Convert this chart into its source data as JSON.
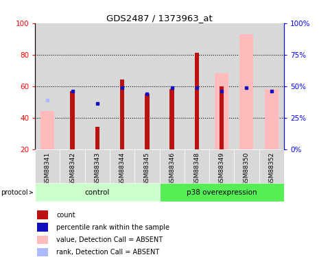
{
  "title": "GDS2487 / 1373963_at",
  "samples": [
    "GSM88341",
    "GSM88342",
    "GSM88343",
    "GSM88344",
    "GSM88345",
    "GSM88346",
    "GSM88348",
    "GSM88349",
    "GSM88350",
    "GSM88352"
  ],
  "red_bars": [
    null,
    57,
    34,
    64,
    55,
    58,
    81,
    60,
    null,
    null
  ],
  "pink_bars": [
    44,
    null,
    null,
    null,
    null,
    null,
    null,
    68,
    93,
    58
  ],
  "blue_squares": [
    null,
    57,
    49,
    59,
    55,
    59,
    59,
    57,
    59,
    57
  ],
  "light_blue_squares": [
    51,
    null,
    null,
    null,
    null,
    null,
    null,
    null,
    null,
    null
  ],
  "ylim_left": [
    20,
    100
  ],
  "ylim_right": [
    0,
    100
  ],
  "yticks_left": [
    20,
    40,
    60,
    80,
    100
  ],
  "ytick_labels_right": [
    "0%",
    "25%",
    "50%",
    "75%",
    "100%"
  ],
  "yticks_right": [
    0,
    25,
    50,
    75,
    100
  ],
  "red_color": "#bb1111",
  "pink_color": "#ffbbbb",
  "blue_color": "#1111bb",
  "light_blue_color": "#aabbff",
  "control_color": "#ccffcc",
  "overexp_color": "#55ee55",
  "col_bg_color": "#d8d8d8",
  "plot_bg": "#ffffff",
  "legend_items": [
    {
      "label": "count",
      "color": "#bb1111"
    },
    {
      "label": "percentile rank within the sample",
      "color": "#1111bb"
    },
    {
      "label": "value, Detection Call = ABSENT",
      "color": "#ffbbbb"
    },
    {
      "label": "rank, Detection Call = ABSENT",
      "color": "#aabbff"
    }
  ]
}
